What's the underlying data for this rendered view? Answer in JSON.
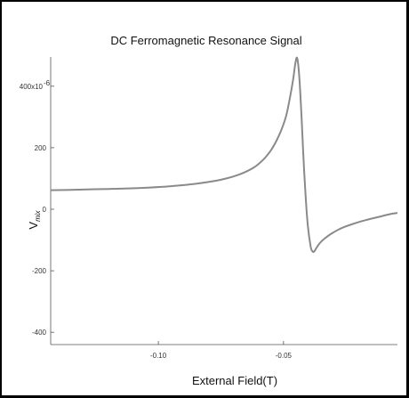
{
  "chart_data": {
    "type": "line",
    "title": "DC Ferromagnetic Resonance Signal",
    "xlabel": "External Field(T)",
    "ylabel": "V",
    "ylabel_subscript": "mix",
    "y_exponent_label": "400x10",
    "y_exponent_sup": "-6",
    "xlim": [
      -0.143,
      -0.0045
    ],
    "ylim": [
      -440,
      495
    ],
    "x_ticks": [
      {
        "value": -0.1,
        "label": "-0.10"
      },
      {
        "value": -0.05,
        "label": "-0.05"
      }
    ],
    "y_ticks": [
      {
        "value": 400,
        "label": "400x10"
      },
      {
        "value": 200,
        "label": "200"
      },
      {
        "value": 0,
        "label": "0"
      },
      {
        "value": -200,
        "label": "-200"
      },
      {
        "value": -400,
        "label": "-400"
      }
    ],
    "line_color": "#8a8a8a",
    "series": [
      {
        "x": [
          -0.143,
          -0.135,
          -0.125,
          -0.115,
          -0.105,
          -0.095,
          -0.085,
          -0.075,
          -0.068,
          -0.062,
          -0.058,
          -0.055,
          -0.053,
          -0.051,
          -0.049,
          -0.0475,
          -0.0462,
          -0.0452,
          -0.0445,
          -0.0437,
          -0.0428,
          -0.0418,
          -0.0405,
          -0.0392,
          -0.0384,
          -0.0378,
          -0.0368,
          -0.0355,
          -0.034,
          -0.031,
          -0.027,
          -0.022,
          -0.017,
          -0.012,
          -0.008,
          -0.0045
        ],
        "y": [
          62,
          63,
          65,
          67,
          70,
          75,
          83,
          96,
          112,
          135,
          162,
          192,
          220,
          255,
          302,
          360,
          420,
          478,
          490,
          430,
          300,
          130,
          -35,
          -120,
          -137,
          -138,
          -125,
          -110,
          -98,
          -80,
          -62,
          -47,
          -35,
          -25,
          -17,
          -12
        ]
      }
    ]
  }
}
